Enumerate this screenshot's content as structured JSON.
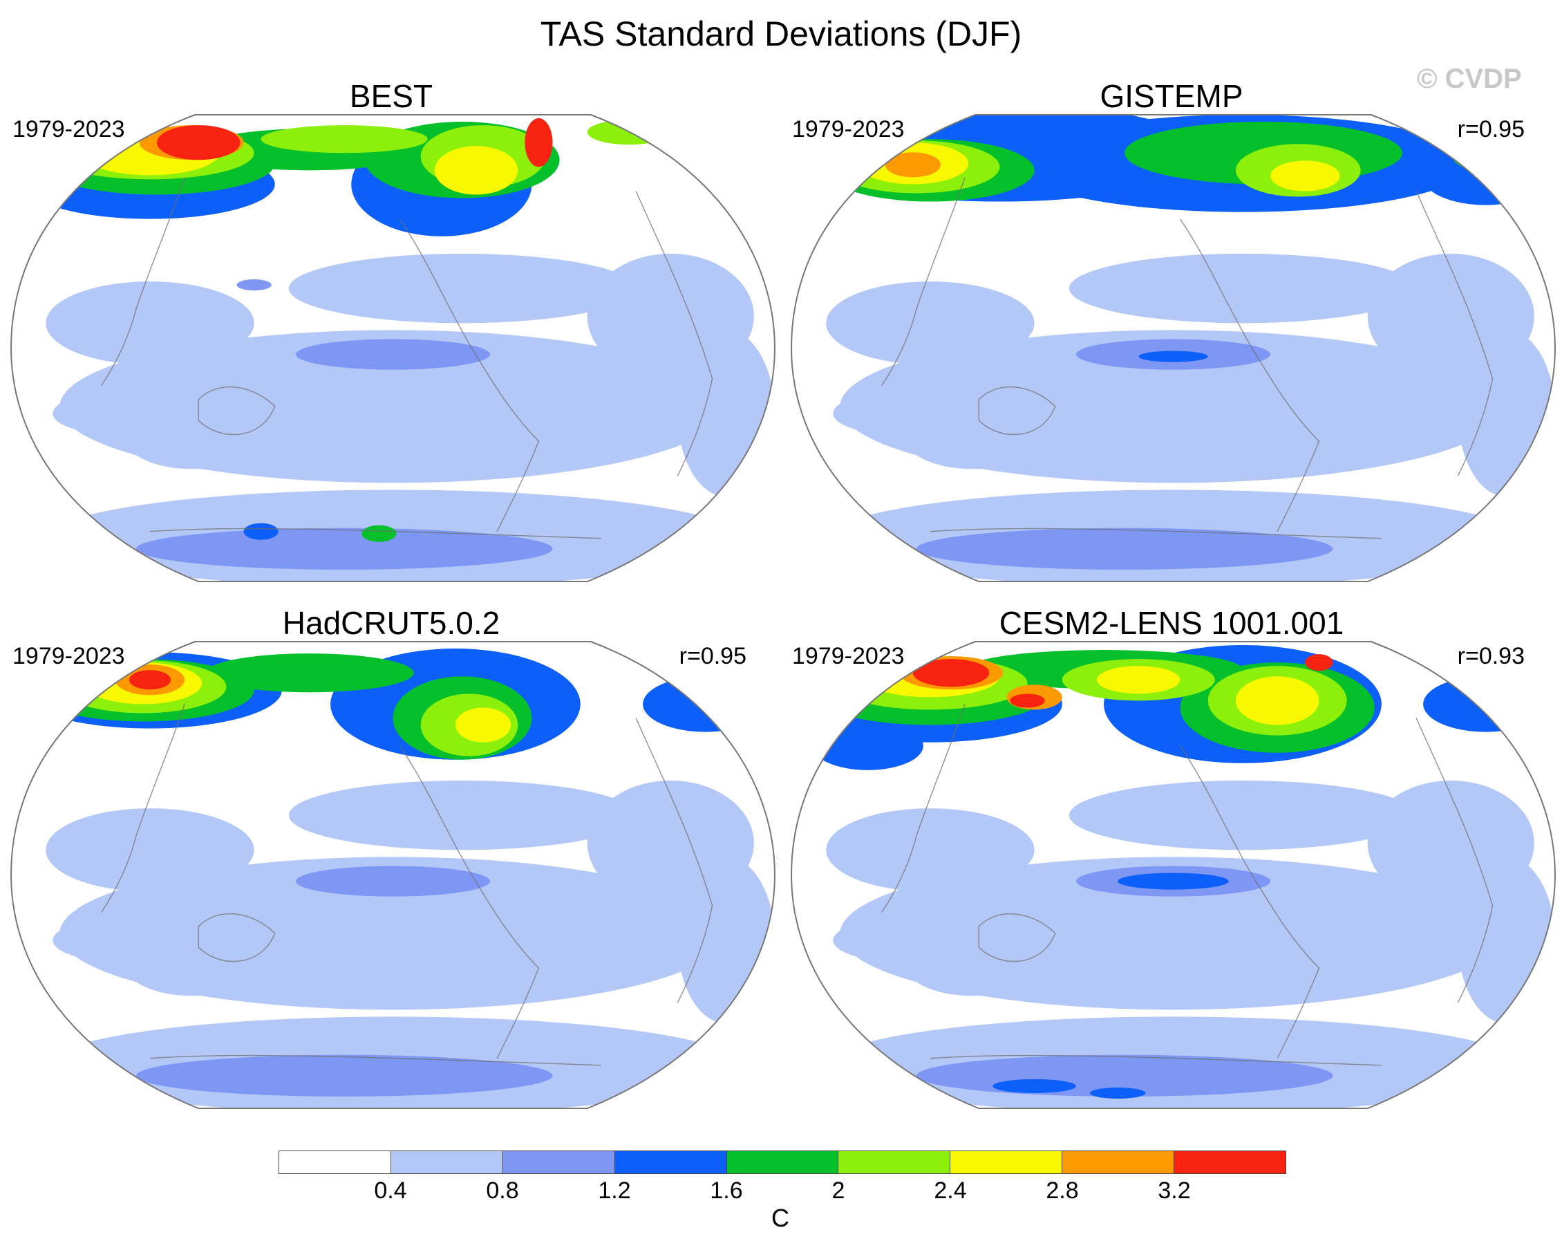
{
  "title": "TAS Standard Deviations (DJF)",
  "watermark": "© CVDP",
  "panels": [
    {
      "title": "BEST",
      "period": "1979-2023",
      "corr": ""
    },
    {
      "title": "GISTEMP",
      "period": "1979-2023",
      "corr": "r=0.95"
    },
    {
      "title": "HadCRUT5.0.2",
      "period": "1979-2023",
      "corr": "r=0.95"
    },
    {
      "title": "CESM2-LENS 1001.001",
      "period": "1979-2023",
      "corr": "r=0.93"
    }
  ],
  "colorbar": {
    "colors": [
      "#ffffff",
      "#b4c8f8",
      "#7e97f4",
      "#0d5ffa",
      "#05c02b",
      "#8cf00a",
      "#f8f900",
      "#fb9a00",
      "#f82210"
    ],
    "ticks": [
      "0.4",
      "0.8",
      "1.2",
      "1.6",
      "2",
      "2.4",
      "2.8",
      "3.2"
    ],
    "unit": "C"
  }
}
